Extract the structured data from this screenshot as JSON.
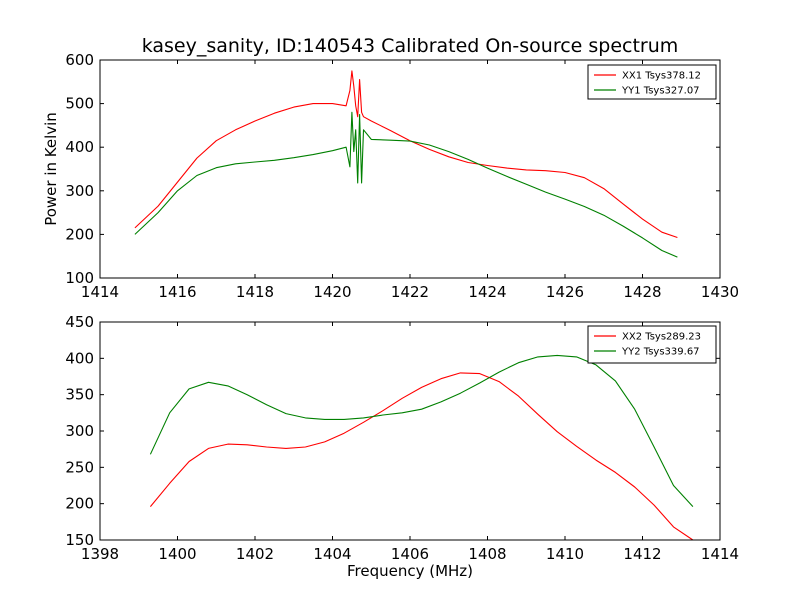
{
  "chart_data": [
    {
      "type": "line",
      "title": "kasey_sanity, ID:140543 Calibrated On-source spectrum",
      "xlabel": "",
      "ylabel": "Power in Kelvin",
      "xlim": [
        1414,
        1430
      ],
      "ylim": [
        100,
        600
      ],
      "xticks": [
        1414,
        1416,
        1418,
        1420,
        1422,
        1424,
        1426,
        1428,
        1430
      ],
      "yticks": [
        100,
        200,
        300,
        400,
        500,
        600
      ],
      "legend_position": "top-right",
      "series": [
        {
          "name": "XX1 Tsys378.12",
          "color": "#ff0000",
          "x": [
            1414.9,
            1415.5,
            1416.0,
            1416.5,
            1417.0,
            1417.5,
            1418.0,
            1418.5,
            1419.0,
            1419.5,
            1420.0,
            1420.35,
            1420.45,
            1420.5,
            1420.55,
            1420.6,
            1420.65,
            1420.7,
            1420.75,
            1420.8,
            1421.0,
            1421.5,
            1422.0,
            1422.5,
            1423.0,
            1423.5,
            1424.0,
            1424.5,
            1425.0,
            1425.5,
            1426.0,
            1426.5,
            1427.0,
            1427.5,
            1428.0,
            1428.5,
            1428.9
          ],
          "values": [
            215,
            265,
            320,
            375,
            415,
            440,
            460,
            478,
            492,
            500,
            500,
            495,
            530,
            575,
            540,
            495,
            470,
            555,
            480,
            470,
            460,
            438,
            415,
            395,
            378,
            365,
            358,
            352,
            348,
            346,
            342,
            330,
            305,
            270,
            235,
            205,
            193
          ]
        },
        {
          "name": "YY1 Tsys327.07",
          "color": "#008000",
          "x": [
            1414.9,
            1415.5,
            1416.0,
            1416.5,
            1417.0,
            1417.5,
            1418.0,
            1418.5,
            1419.0,
            1419.5,
            1420.0,
            1420.35,
            1420.45,
            1420.5,
            1420.55,
            1420.6,
            1420.65,
            1420.7,
            1420.75,
            1420.8,
            1421.0,
            1421.5,
            1422.0,
            1422.5,
            1423.0,
            1423.5,
            1424.0,
            1424.5,
            1425.0,
            1425.5,
            1426.0,
            1426.5,
            1427.0,
            1427.5,
            1428.0,
            1428.5,
            1428.9
          ],
          "values": [
            200,
            250,
            300,
            335,
            353,
            362,
            366,
            370,
            376,
            383,
            392,
            400,
            355,
            480,
            390,
            440,
            318,
            475,
            318,
            440,
            418,
            416,
            414,
            405,
            390,
            372,
            352,
            333,
            315,
            297,
            281,
            264,
            244,
            219,
            192,
            163,
            148
          ]
        }
      ]
    },
    {
      "type": "line",
      "title": "",
      "xlabel": "Frequency (MHz)",
      "ylabel": "",
      "xlim": [
        1398,
        1414
      ],
      "ylim": [
        150,
        450
      ],
      "xticks": [
        1398,
        1400,
        1402,
        1404,
        1406,
        1408,
        1410,
        1412,
        1414
      ],
      "yticks": [
        150,
        200,
        250,
        300,
        350,
        400,
        450
      ],
      "legend_position": "top-right",
      "series": [
        {
          "name": "XX2 Tsys289.23",
          "color": "#ff0000",
          "x": [
            1399.3,
            1399.8,
            1400.3,
            1400.8,
            1401.3,
            1401.8,
            1402.3,
            1402.8,
            1403.3,
            1403.8,
            1404.3,
            1404.8,
            1405.3,
            1405.8,
            1406.3,
            1406.8,
            1407.3,
            1407.8,
            1408.3,
            1408.8,
            1409.3,
            1409.8,
            1410.3,
            1410.8,
            1411.3,
            1411.8,
            1412.3,
            1412.8,
            1413.3
          ],
          "values": [
            196,
            228,
            258,
            276,
            282,
            281,
            278,
            276,
            278,
            285,
            297,
            312,
            328,
            345,
            360,
            372,
            380,
            379,
            368,
            348,
            323,
            299,
            279,
            260,
            243,
            223,
            198,
            168,
            150
          ]
        },
        {
          "name": "YY2 Tsys339.67",
          "color": "#008000",
          "x": [
            1399.3,
            1399.8,
            1400.3,
            1400.8,
            1401.3,
            1401.8,
            1402.3,
            1402.8,
            1403.3,
            1403.8,
            1404.3,
            1404.8,
            1405.3,
            1405.8,
            1406.3,
            1406.8,
            1407.3,
            1407.8,
            1408.3,
            1408.8,
            1409.3,
            1409.8,
            1410.3,
            1410.8,
            1411.3,
            1411.8,
            1412.3,
            1412.8,
            1413.3
          ],
          "values": [
            268,
            325,
            358,
            367,
            362,
            350,
            336,
            324,
            318,
            316,
            316,
            318,
            322,
            325,
            330,
            340,
            352,
            366,
            381,
            394,
            402,
            404,
            402,
            391,
            369,
            330,
            278,
            225,
            196
          ]
        }
      ]
    }
  ]
}
